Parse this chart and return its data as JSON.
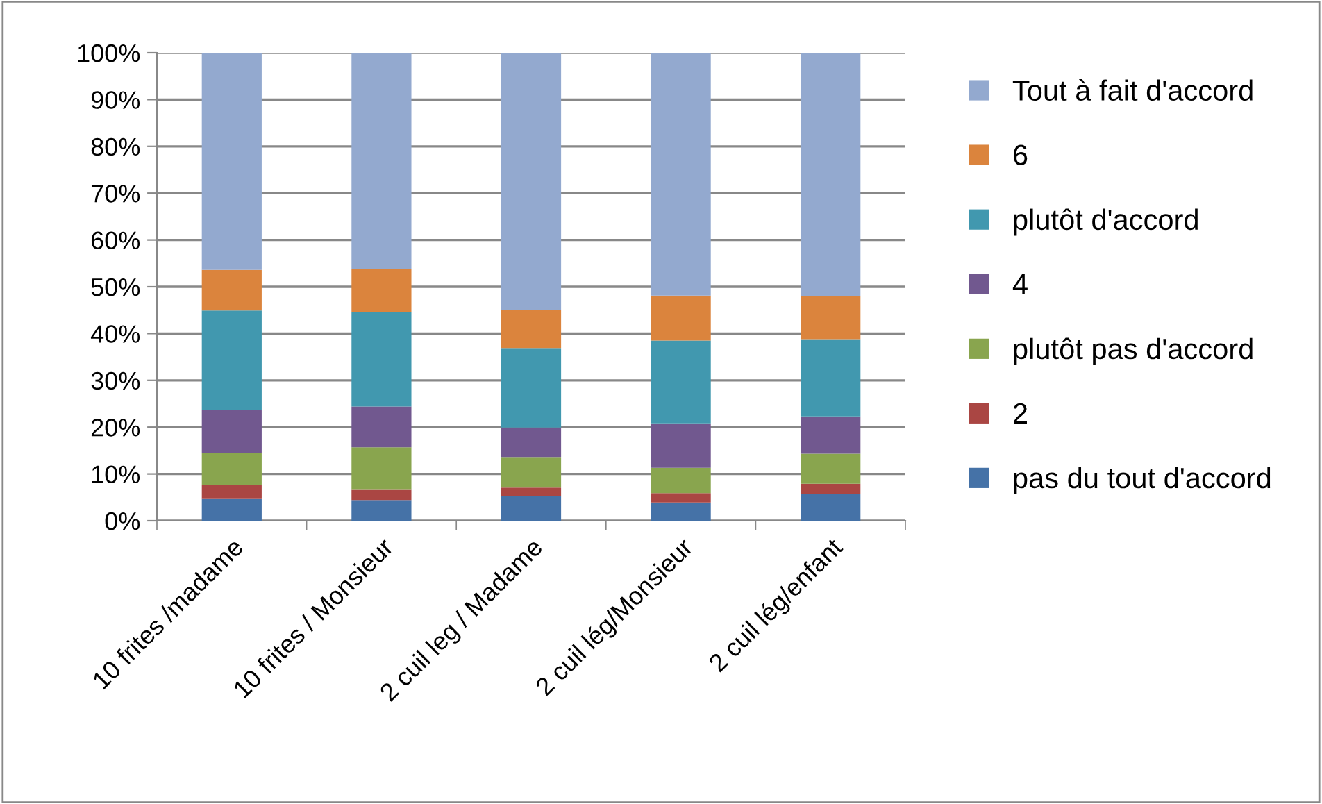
{
  "chart_data": {
    "type": "bar",
    "stacked": true,
    "categories": [
      "10 frites /madame",
      "10 frites / Monsieur",
      "2 cuil leg / Madame",
      "2 cuil lég/Monsieur",
      "2 cuil lég/enfant"
    ],
    "series": [
      {
        "name": "pas du tout d'accord",
        "color": "#4572a7",
        "values": [
          4.8,
          4.4,
          5.3,
          3.9,
          5.7
        ]
      },
      {
        "name": "2",
        "color": "#aa4643",
        "values": [
          2.8,
          2.2,
          1.8,
          2.0,
          2.2
        ]
      },
      {
        "name": "plutôt pas d'accord",
        "color": "#89a54e",
        "values": [
          6.8,
          9.1,
          6.5,
          5.4,
          6.4
        ]
      },
      {
        "name": "4",
        "color": "#71588f",
        "values": [
          9.3,
          8.7,
          6.3,
          9.5,
          8.0
        ]
      },
      {
        "name": "plutôt d'accord",
        "color": "#4198af",
        "values": [
          21.2,
          20.1,
          17.0,
          17.7,
          16.5
        ]
      },
      {
        "name": "6",
        "color": "#db843d",
        "values": [
          8.7,
          9.3,
          8.1,
          9.6,
          9.2
        ]
      },
      {
        "name": "Tout à fait d'accord",
        "color": "#93a9cf",
        "values": [
          46.4,
          46.2,
          55.0,
          51.9,
          52.0
        ]
      }
    ],
    "ylim": [
      0,
      100
    ],
    "yticks": [
      {
        "value": 0,
        "label": "0%"
      },
      {
        "value": 10,
        "label": "10%"
      },
      {
        "value": 20,
        "label": "20%"
      },
      {
        "value": 30,
        "label": "30%"
      },
      {
        "value": 40,
        "label": "40%"
      },
      {
        "value": 50,
        "label": "50%"
      },
      {
        "value": 60,
        "label": "60%"
      },
      {
        "value": 70,
        "label": "70%"
      },
      {
        "value": 80,
        "label": "80%"
      },
      {
        "value": 90,
        "label": "90%"
      },
      {
        "value": 100,
        "label": "100%"
      }
    ],
    "grid": "y",
    "legend": "right"
  }
}
